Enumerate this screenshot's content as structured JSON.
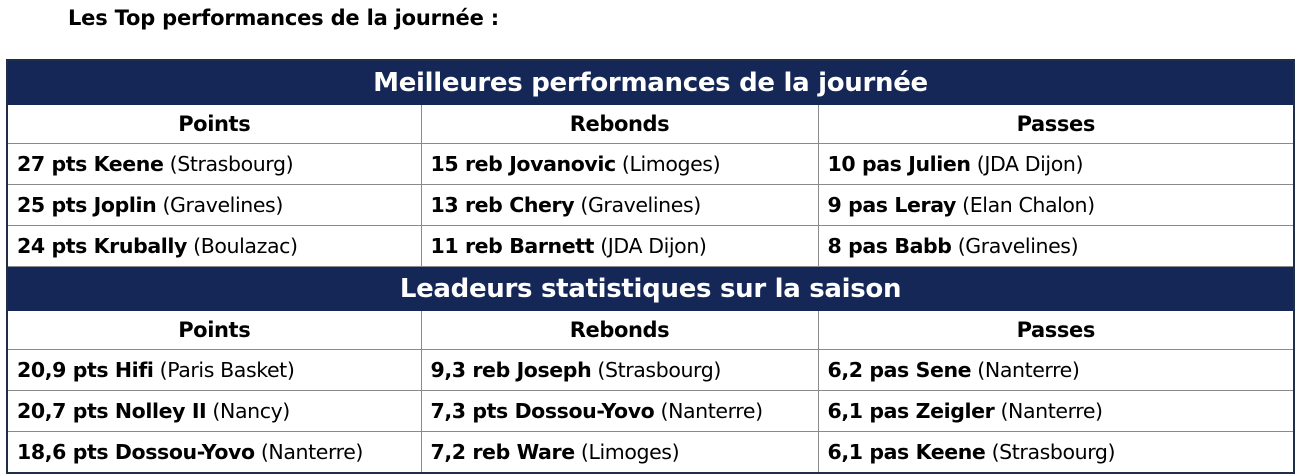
{
  "page_title": "Les Top performances de la journée :",
  "sections": [
    {
      "title": "Meilleures performances de la journée",
      "headers": [
        "Points",
        "Rebonds",
        "Passes"
      ],
      "rows": [
        [
          {
            "value": "27 pts Keene",
            "team": "(Strasbourg)"
          },
          {
            "value": "15 reb Jovanovic",
            "team": "(Limoges)"
          },
          {
            "value": "10 pas Julien",
            "team": "(JDA Dijon)"
          }
        ],
        [
          {
            "value": "25 pts Joplin",
            "team": "(Gravelines)"
          },
          {
            "value": "13 reb Chery",
            "team": "(Gravelines)"
          },
          {
            "value": "9 pas Leray",
            "team": "(Elan Chalon)"
          }
        ],
        [
          {
            "value": "24 pts Krubally",
            "team": "(Boulazac)"
          },
          {
            "value": "11 reb Barnett",
            "team": "(JDA Dijon)"
          },
          {
            "value": "8 pas Babb",
            "team": "(Gravelines)"
          }
        ]
      ]
    },
    {
      "title": "Leadeurs statistiques sur la saison",
      "headers": [
        "Points",
        "Rebonds",
        "Passes"
      ],
      "rows": [
        [
          {
            "value": "20,9 pts Hifi",
            "team": "(Paris Basket)"
          },
          {
            "value": "9,3 reb Joseph",
            "team": "(Strasbourg)"
          },
          {
            "value": "6,2 pas Sene",
            "team": "(Nanterre)"
          }
        ],
        [
          {
            "value": "20,7 pts Nolley II",
            "team": "(Nancy)"
          },
          {
            "value": "7,3 pts Dossou-Yovo",
            "team": "(Nanterre)"
          },
          {
            "value": "6,1 pas Zeigler",
            "team": "(Nanterre)"
          }
        ],
        [
          {
            "value": "18,6 pts Dossou-Yovo",
            "team": "(Nanterre)"
          },
          {
            "value": "7,2 reb Ware",
            "team": "(Limoges)"
          },
          {
            "value": "6,1 pas Keene",
            "team": "(Strasbourg)"
          }
        ]
      ]
    }
  ],
  "colors": {
    "banner_background": "#142757",
    "banner_text": "#ffffff",
    "grid_line": "#8a8a8a"
  }
}
